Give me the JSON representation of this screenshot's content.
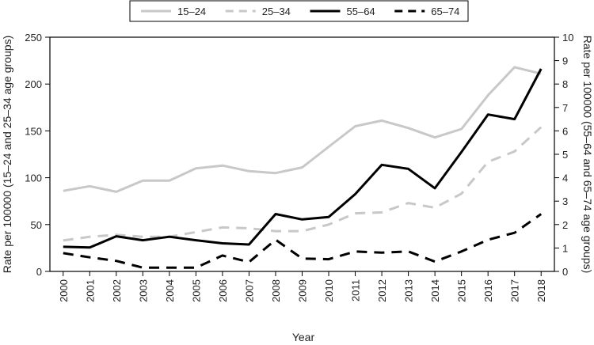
{
  "chart_data": {
    "type": "line",
    "title": "",
    "xlabel": "Year",
    "ylabel_left": "Rate per 100000 (15–24 and 25–34 age groups)",
    "ylabel_right": "Rate per 100000 (55–64 and 65–74 age groups)",
    "x": [
      "2000",
      "2001",
      "2002",
      "2003",
      "2004",
      "2005",
      "2006",
      "2007",
      "2008",
      "2009",
      "2010",
      "2011",
      "2012",
      "2013",
      "2014",
      "2015",
      "2016",
      "2017",
      "2018"
    ],
    "ylim_left": [
      0,
      250
    ],
    "yticks_left": [
      0,
      50,
      100,
      150,
      200,
      250
    ],
    "ylim_right": [
      0,
      10
    ],
    "yticks_right": [
      0,
      1,
      2,
      3,
      4,
      5,
      6,
      7,
      8,
      9,
      10
    ],
    "grid": false,
    "legend_position": "top",
    "series": [
      {
        "name": "15–24",
        "axis": "left",
        "color": "#c8c8c8",
        "style": "solid",
        "values": [
          86,
          91,
          85,
          97,
          97,
          110,
          113,
          107,
          105,
          111,
          133,
          155,
          161,
          153,
          143,
          152,
          188,
          218,
          211
        ]
      },
      {
        "name": "25–34",
        "axis": "left",
        "color": "#c8c8c8",
        "style": "dashed",
        "values": [
          33,
          37,
          39,
          37,
          37,
          42,
          47,
          46,
          43,
          43,
          50,
          62,
          63,
          73,
          68,
          83,
          117,
          128,
          154
        ]
      },
      {
        "name": "55–64",
        "axis": "right",
        "color": "#000000",
        "style": "solid",
        "values": [
          1.05,
          1.02,
          1.5,
          1.33,
          1.48,
          1.33,
          1.2,
          1.15,
          2.45,
          2.22,
          2.32,
          3.3,
          4.55,
          4.38,
          3.55,
          5.1,
          6.7,
          6.5,
          8.65
        ]
      },
      {
        "name": "65–74",
        "axis": "right",
        "color": "#000000",
        "style": "dashed",
        "values": [
          0.78,
          0.6,
          0.45,
          0.16,
          0.16,
          0.16,
          0.68,
          0.4,
          1.35,
          0.55,
          0.52,
          0.85,
          0.8,
          0.85,
          0.42,
          0.85,
          1.35,
          1.65,
          2.45
        ]
      }
    ]
  }
}
